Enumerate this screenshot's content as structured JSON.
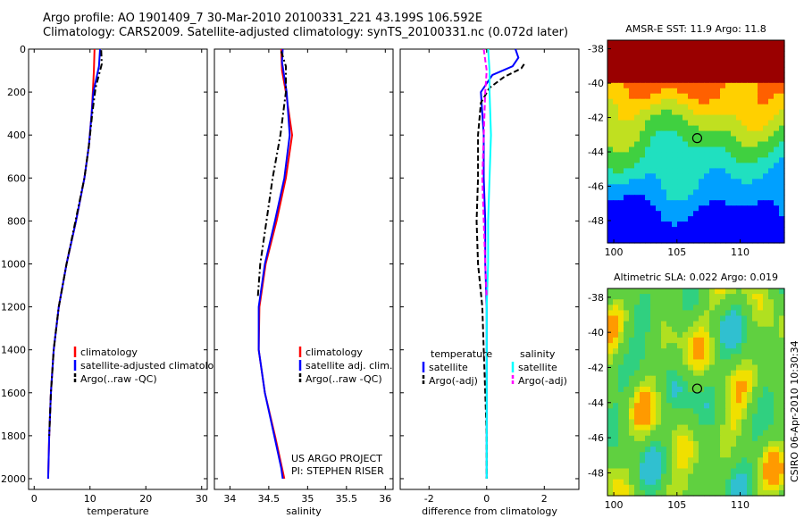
{
  "header": {
    "line1": "Argo profile: AO 1901409_7 30-Mar-2010 20100331_221 43.199S 106.592E",
    "line2": "Climatology: CARS2009. Satellite-adjusted climatology: synTS_20100331.nc (0.072d later)"
  },
  "stamp": "CSIRO 06-Apr-2010 10:30:34",
  "colors": {
    "climatology": "#ff0000",
    "satellite": "#0000ff",
    "argo": "#000000",
    "salinity_satellite": "#00ffff",
    "salinity_argo": "#ff00ff"
  },
  "chart_data": [
    {
      "type": "line",
      "xlabel": "temperature",
      "ylabel": "",
      "xlim": [
        -1,
        31
      ],
      "ylim": [
        2050,
        0
      ],
      "y_reversed": true,
      "xticks": [
        0,
        10,
        20,
        30
      ],
      "yticks": [
        0,
        200,
        400,
        600,
        800,
        1000,
        1200,
        1400,
        1600,
        1800,
        2000
      ],
      "legend_position": "lower-middle",
      "series": [
        {
          "name": "climatology",
          "color": "#ff0000",
          "dash": "solid",
          "x": [
            10.8,
            10.7,
            10.5,
            10.3,
            9.8,
            9.0,
            7.5,
            5.8,
            4.4,
            3.5,
            3.0,
            2.7,
            2.5
          ],
          "y": [
            0,
            100,
            200,
            300,
            450,
            600,
            800,
            1000,
            1200,
            1400,
            1600,
            1800,
            2000
          ]
        },
        {
          "name": "satellite-adjusted climatology",
          "color": "#0000ff",
          "dash": "solid",
          "x": [
            11.8,
            11.6,
            10.6,
            10.3,
            9.8,
            9.0,
            7.5,
            5.8,
            4.4,
            3.5,
            3.0,
            2.7,
            2.5
          ],
          "y": [
            0,
            80,
            200,
            300,
            450,
            600,
            800,
            1000,
            1200,
            1400,
            1600,
            1800,
            2000
          ]
        },
        {
          "name": "Argo(..raw -QC)",
          "color": "#000000",
          "dash": "dashdot",
          "x": [
            12.0,
            12.1,
            11.0,
            10.4,
            9.8,
            9.0,
            7.4,
            5.8,
            4.4,
            3.5,
            3.0,
            2.7
          ],
          "y": [
            5,
            70,
            180,
            300,
            450,
            600,
            800,
            1000,
            1200,
            1400,
            1600,
            1800
          ]
        }
      ]
    },
    {
      "type": "line",
      "xlabel": "salinity",
      "ylabel": "",
      "xlim": [
        33.8,
        36.1
      ],
      "ylim": [
        2050,
        0
      ],
      "y_reversed": true,
      "xticks": [
        34,
        34.5,
        35,
        35.5,
        36
      ],
      "legend_position": "lower-middle",
      "annotations": [
        "US ARGO PROJECT",
        "PI: STEPHEN RISER"
      ],
      "series": [
        {
          "name": "climatology",
          "color": "#ff0000",
          "dash": "solid",
          "x": [
            34.66,
            34.67,
            34.72,
            34.8,
            34.72,
            34.6,
            34.46,
            34.38,
            34.37,
            34.45,
            34.58,
            34.67,
            34.7
          ],
          "y": [
            0,
            100,
            200,
            400,
            600,
            800,
            1000,
            1200,
            1400,
            1600,
            1800,
            1950,
            2000
          ]
        },
        {
          "name": "satellite adj. clim.",
          "color": "#0000ff",
          "dash": "solid",
          "x": [
            34.68,
            34.67,
            34.73,
            34.77,
            34.7,
            34.58,
            34.45,
            34.37,
            34.37,
            34.45,
            34.57,
            34.66,
            34.68
          ],
          "y": [
            0,
            60,
            200,
            400,
            600,
            800,
            1000,
            1200,
            1400,
            1600,
            1800,
            1950,
            2000
          ]
        },
        {
          "name": "Argo(..raw -QC)",
          "color": "#000000",
          "dash": "dashdot",
          "x": [
            34.66,
            34.72,
            34.72,
            34.65,
            34.55,
            34.47,
            34.39,
            34.36
          ],
          "y": [
            10,
            80,
            200,
            400,
            600,
            800,
            1000,
            1150
          ]
        }
      ]
    },
    {
      "type": "line",
      "xlabel": "difference from climatology",
      "ylabel": "",
      "xlim": [
        -3,
        3.2
      ],
      "ylim": [
        2050,
        0
      ],
      "y_reversed": true,
      "xticks": [
        -2,
        0,
        2
      ],
      "legend_position": "lower-middle",
      "legend_groups": [
        {
          "title": "temperature",
          "entries": [
            "satellite",
            "Argo(-adj)"
          ]
        },
        {
          "title": "salinity",
          "entries": [
            "satellite",
            "Argo(-adj)"
          ]
        }
      ],
      "series": [
        {
          "name": "satellite",
          "group": "temperature",
          "color": "#0000ff",
          "dash": "solid",
          "x": [
            1.0,
            1.1,
            0.9,
            0.2,
            -0.2,
            -0.1,
            -0.1,
            -0.05,
            -0.05,
            0.0,
            0.0,
            0.0,
            0.0,
            0.0
          ],
          "y": [
            0,
            40,
            80,
            120,
            200,
            400,
            600,
            800,
            1000,
            1200,
            1400,
            1600,
            1800,
            2000
          ]
        },
        {
          "name": "Argo(-adj)",
          "group": "temperature",
          "color": "#000000",
          "dash": "dashed",
          "x": [
            1.3,
            1.2,
            0.6,
            0.1,
            -0.2,
            -0.3,
            -0.3,
            -0.35,
            -0.3,
            -0.15,
            -0.1,
            -0.05,
            0.0,
            0.0
          ],
          "y": [
            70,
            90,
            130,
            180,
            250,
            400,
            600,
            800,
            1000,
            1200,
            1400,
            1600,
            1800,
            2000
          ]
        },
        {
          "name": "satellite",
          "group": "salinity",
          "color": "#00ffff",
          "dash": "solid",
          "x": [
            0.05,
            0.1,
            0.1,
            0.15,
            0.1,
            0.05,
            0.05,
            0.0,
            0.0,
            0.0,
            0.0
          ],
          "y": [
            0,
            100,
            200,
            400,
            600,
            800,
            1000,
            1200,
            1400,
            1600,
            2000
          ]
        },
        {
          "name": "Argo(-adj)",
          "group": "salinity",
          "color": "#ff00ff",
          "dash": "dashed",
          "x": [
            -0.1,
            0.0,
            -0.05,
            -0.1,
            -0.15,
            -0.1,
            -0.05,
            0.0
          ],
          "y": [
            0,
            100,
            200,
            400,
            600,
            800,
            1000,
            1150
          ]
        }
      ]
    },
    {
      "type": "heatmap",
      "title": "AMSR-E SST: 11.9 Argo: 11.8",
      "xlim": [
        99.5,
        113.5
      ],
      "ylim": [
        -49.3,
        -37.5
      ],
      "xticks": [
        100,
        105,
        110
      ],
      "yticks": [
        -38,
        -40,
        -42,
        -44,
        -46,
        -48
      ],
      "marker": {
        "x": 106.6,
        "y": -43.2
      }
    },
    {
      "type": "heatmap",
      "title": "Altimetric SLA: 0.022 Argo: 0.019",
      "xlim": [
        99.5,
        113.5
      ],
      "ylim": [
        -49.3,
        -37.5
      ],
      "xticks": [
        100,
        105,
        110
      ],
      "yticks": [
        -38,
        -40,
        -42,
        -44,
        -46,
        -48
      ],
      "marker": {
        "x": 106.6,
        "y": -43.2
      }
    }
  ]
}
